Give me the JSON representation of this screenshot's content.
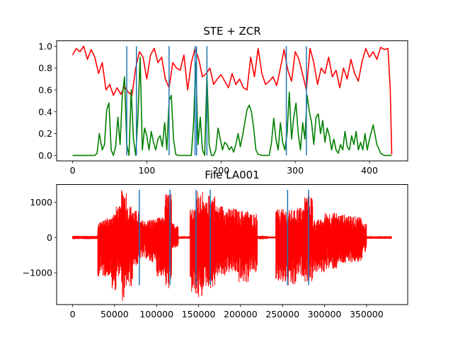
{
  "chart_data": [
    {
      "type": "line",
      "title": "STE + ZCR",
      "xlim": [
        -21.5,
        451.5
      ],
      "ylim": [
        -0.05,
        1.05
      ],
      "x_ticks": [
        0,
        100,
        200,
        300,
        400
      ],
      "y_ticks": [
        0.0,
        0.2,
        0.4,
        0.6,
        0.8,
        1.0
      ],
      "x_tick_labels": [
        "0",
        "100",
        "200",
        "300",
        "400"
      ],
      "y_tick_labels": [
        "0.0",
        "0.2",
        "0.4",
        "0.6",
        "0.8",
        "1.0"
      ],
      "series": [
        {
          "color": "#ff0000",
          "x": [
            0,
            5,
            10,
            15,
            20,
            25,
            30,
            35,
            40,
            45,
            50,
            55,
            60,
            65,
            70,
            75,
            80,
            85,
            90,
            95,
            100,
            105,
            110,
            115,
            120,
            125,
            130,
            135,
            140,
            145,
            150,
            155,
            160,
            165,
            170,
            175,
            180,
            185,
            190,
            195,
            200,
            205,
            210,
            215,
            220,
            225,
            230,
            235,
            240,
            245,
            250,
            255,
            260,
            265,
            270,
            275,
            280,
            285,
            290,
            295,
            300,
            305,
            310,
            315,
            320,
            325,
            330,
            335,
            340,
            345,
            350,
            355,
            360,
            365,
            370,
            375,
            380,
            385,
            390,
            395,
            400,
            405,
            410,
            415,
            420,
            425,
            428,
            430
          ],
          "y": [
            0.92,
            0.98,
            0.95,
            1.0,
            0.88,
            0.97,
            0.9,
            0.75,
            0.85,
            0.6,
            0.65,
            0.55,
            0.62,
            0.56,
            0.63,
            0.58,
            0.55,
            0.8,
            0.95,
            0.9,
            0.7,
            0.92,
            0.98,
            0.85,
            0.9,
            0.7,
            0.62,
            0.85,
            0.8,
            0.78,
            0.92,
            0.6,
            0.85,
            0.98,
            0.88,
            0.72,
            0.75,
            0.8,
            0.65,
            0.7,
            0.74,
            0.68,
            0.62,
            0.75,
            0.65,
            0.7,
            0.62,
            0.6,
            0.9,
            0.72,
            0.98,
            0.75,
            0.65,
            0.68,
            0.72,
            0.64,
            0.8,
            0.97,
            0.78,
            0.68,
            0.95,
            0.88,
            0.74,
            0.6,
            0.98,
            0.85,
            0.65,
            0.8,
            0.75,
            0.9,
            0.72,
            0.78,
            0.62,
            0.8,
            0.7,
            0.88,
            0.75,
            0.68,
            0.86,
            0.98,
            0.9,
            0.95,
            0.88,
            0.99,
            0.97,
            0.98,
            0.6,
            0.01
          ]
        },
        {
          "color": "#008000",
          "x": [
            0,
            5,
            10,
            15,
            20,
            25,
            30,
            33,
            36,
            40,
            43,
            46,
            49,
            52,
            55,
            58,
            61,
            64,
            67,
            70,
            73,
            76,
            79,
            82,
            85,
            88,
            91,
            94,
            97,
            100,
            103,
            106,
            109,
            112,
            115,
            118,
            121,
            124,
            127,
            130,
            133,
            136,
            139,
            142,
            145,
            150,
            155,
            160,
            163,
            166,
            169,
            172,
            175,
            178,
            181,
            184,
            187,
            190,
            193,
            196,
            199,
            202,
            205,
            208,
            211,
            214,
            217,
            220,
            223,
            226,
            229,
            232,
            235,
            238,
            241,
            244,
            247,
            250,
            255,
            260,
            265,
            268,
            271,
            274,
            277,
            280,
            283,
            286,
            289,
            292,
            295,
            298,
            301,
            304,
            307,
            310,
            313,
            316,
            319,
            322,
            325,
            328,
            331,
            334,
            337,
            340,
            343,
            346,
            349,
            352,
            355,
            358,
            361,
            364,
            367,
            370,
            373,
            376,
            379,
            382,
            385,
            388,
            391,
            394,
            397,
            400,
            405,
            410,
            415,
            420,
            425,
            430
          ],
          "y": [
            0.0,
            0.0,
            0.0,
            0.0,
            0.0,
            0.0,
            0.0,
            0.02,
            0.2,
            0.05,
            0.1,
            0.42,
            0.48,
            0.05,
            0.0,
            0.08,
            0.35,
            0.1,
            0.55,
            0.72,
            0.1,
            0.0,
            0.6,
            0.15,
            0.0,
            0.35,
            0.9,
            0.05,
            0.25,
            0.18,
            0.05,
            0.22,
            0.12,
            0.05,
            0.15,
            0.18,
            0.08,
            0.3,
            0.05,
            0.5,
            0.55,
            0.15,
            0.01,
            0.0,
            0.0,
            0.0,
            0.0,
            0.0,
            0.3,
            0.85,
            0.1,
            0.35,
            0.05,
            0.0,
            0.75,
            0.1,
            0.0,
            0.0,
            0.05,
            0.25,
            0.15,
            0.05,
            0.12,
            0.1,
            0.05,
            0.08,
            0.03,
            0.1,
            0.2,
            0.08,
            0.18,
            0.3,
            0.42,
            0.46,
            0.4,
            0.25,
            0.05,
            0.01,
            0.0,
            0.0,
            0.0,
            0.12,
            0.34,
            0.15,
            0.05,
            0.3,
            0.12,
            0.05,
            0.2,
            0.58,
            0.15,
            0.35,
            0.48,
            0.2,
            0.05,
            0.3,
            0.15,
            0.55,
            0.4,
            0.3,
            0.1,
            0.35,
            0.38,
            0.2,
            0.32,
            0.12,
            0.25,
            0.18,
            0.05,
            0.15,
            0.05,
            0.02,
            0.1,
            0.05,
            0.22,
            0.08,
            0.05,
            0.18,
            0.1,
            0.22,
            0.05,
            0.12,
            0.05,
            0.2,
            0.05,
            0.15,
            0.28,
            0.1,
            0.02,
            0.0,
            0.0,
            0.0
          ]
        },
        {
          "color": "#1f77b4",
          "type": "vlines",
          "x": [
            73,
            86,
            130,
            165,
            167,
            181,
            288,
            315
          ],
          "ymin": 0.0,
          "ymax": 1.0
        }
      ]
    },
    {
      "type": "line",
      "title": "File LA001",
      "xlim": [
        -19000,
        399000
      ],
      "ylim": [
        -1900,
        1500
      ],
      "x_ticks": [
        0,
        50000,
        100000,
        150000,
        200000,
        250000,
        300000,
        350000
      ],
      "y_ticks": [
        -1000,
        0,
        1000
      ],
      "x_tick_labels": [
        "0",
        "50000",
        "100000",
        "150000",
        "200000",
        "250000",
        "300000",
        "350000"
      ],
      "y_tick_labels": [
        "−1000",
        "0",
        "1000"
      ],
      "series": [
        {
          "color": "#ff0000",
          "type": "waveform",
          "samples": 380000,
          "quiet_amplitude": 30,
          "segments": [
            {
              "start": 0,
              "end": 30000,
              "amp_pos": 40,
              "amp_neg": 40
            },
            {
              "start": 30000,
              "end": 38000,
              "amp_pos": 480,
              "amp_neg": 1100
            },
            {
              "start": 38000,
              "end": 46000,
              "amp_pos": 560,
              "amp_neg": 1100
            },
            {
              "start": 46000,
              "end": 52000,
              "amp_pos": 700,
              "amp_neg": 1500
            },
            {
              "start": 52000,
              "end": 58000,
              "amp_pos": 880,
              "amp_neg": 1100
            },
            {
              "start": 58000,
              "end": 64000,
              "amp_pos": 1340,
              "amp_neg": 1800
            },
            {
              "start": 64000,
              "end": 72000,
              "amp_pos": 900,
              "amp_neg": 1400
            },
            {
              "start": 72000,
              "end": 80000,
              "amp_pos": 760,
              "amp_neg": 800
            },
            {
              "start": 80000,
              "end": 90000,
              "amp_pos": 480,
              "amp_neg": 600
            },
            {
              "start": 90000,
              "end": 100000,
              "amp_pos": 520,
              "amp_neg": 700
            },
            {
              "start": 100000,
              "end": 110000,
              "amp_pos": 560,
              "amp_neg": 1100
            },
            {
              "start": 110000,
              "end": 118000,
              "amp_pos": 1250,
              "amp_neg": 1450
            },
            {
              "start": 118000,
              "end": 126000,
              "amp_pos": 400,
              "amp_neg": 300
            },
            {
              "start": 126000,
              "end": 140000,
              "amp_pos": 30,
              "amp_neg": 30
            },
            {
              "start": 140000,
              "end": 148000,
              "amp_pos": 800,
              "amp_neg": 1600
            },
            {
              "start": 148000,
              "end": 155000,
              "amp_pos": 1350,
              "amp_neg": 1750
            },
            {
              "start": 155000,
              "end": 162000,
              "amp_pos": 1000,
              "amp_neg": 1400
            },
            {
              "start": 162000,
              "end": 170000,
              "amp_pos": 1200,
              "amp_neg": 1450
            },
            {
              "start": 170000,
              "end": 182000,
              "amp_pos": 900,
              "amp_neg": 1100
            },
            {
              "start": 182000,
              "end": 196000,
              "amp_pos": 820,
              "amp_neg": 1000
            },
            {
              "start": 196000,
              "end": 210000,
              "amp_pos": 760,
              "amp_neg": 1280
            },
            {
              "start": 210000,
              "end": 220000,
              "amp_pos": 680,
              "amp_neg": 1000
            },
            {
              "start": 220000,
              "end": 232000,
              "amp_pos": 40,
              "amp_neg": 40
            },
            {
              "start": 232000,
              "end": 242000,
              "amp_pos": 20,
              "amp_neg": 20
            },
            {
              "start": 242000,
              "end": 256000,
              "amp_pos": 800,
              "amp_neg": 1300
            },
            {
              "start": 256000,
              "end": 266000,
              "amp_pos": 780,
              "amp_neg": 1400
            },
            {
              "start": 266000,
              "end": 276000,
              "amp_pos": 860,
              "amp_neg": 1100
            },
            {
              "start": 276000,
              "end": 286000,
              "amp_pos": 1200,
              "amp_neg": 1250
            },
            {
              "start": 286000,
              "end": 300000,
              "amp_pos": 500,
              "amp_neg": 1000
            },
            {
              "start": 300000,
              "end": 315000,
              "amp_pos": 700,
              "amp_neg": 900
            },
            {
              "start": 315000,
              "end": 330000,
              "amp_pos": 650,
              "amp_neg": 750
            },
            {
              "start": 330000,
              "end": 345000,
              "amp_pos": 600,
              "amp_neg": 700
            },
            {
              "start": 345000,
              "end": 350000,
              "amp_pos": 400,
              "amp_neg": 500
            },
            {
              "start": 350000,
              "end": 380000,
              "amp_pos": 30,
              "amp_neg": 30
            }
          ]
        },
        {
          "color": "#1f77b4",
          "type": "vlines",
          "x": [
            79500,
            116000,
            147000,
            164000,
            256000,
            281000
          ],
          "ymin": -1350,
          "ymax": 1350
        }
      ]
    }
  ]
}
